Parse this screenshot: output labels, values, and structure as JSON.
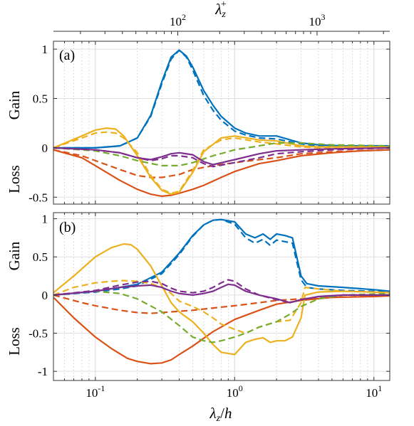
{
  "chart_data": {
    "type": "line",
    "top_axis": {
      "label": "λz+",
      "ticks": [
        {
          "label": "10",
          "exp": "2"
        },
        {
          "label": "10",
          "exp": "3"
        }
      ]
    },
    "bottom_axis": {
      "label": "λz/h",
      "ticks": [
        {
          "label": "10",
          "exp": "-1"
        },
        {
          "label": "10",
          "exp": "0"
        },
        {
          "label": "10",
          "exp": "1"
        }
      ]
    },
    "x_scale": "log",
    "xlim": [
      0.05,
      13
    ],
    "grid": true,
    "panels": [
      {
        "label": "(a)",
        "ylabels": {
          "upper": "Gain",
          "lower": "Loss"
        },
        "ylim": [
          -0.57,
          1.08
        ],
        "yticks": [
          1,
          0.5,
          0,
          -0.5
        ],
        "ytick_labels": [
          "1",
          "0.5",
          "0",
          "-0.5"
        ],
        "series": [
          {
            "color": "#0072BD",
            "dash": "solid",
            "x": [
              0.05,
              0.1,
              0.15,
              0.2,
              0.25,
              0.3,
              0.35,
              0.4,
              0.45,
              0.5,
              0.6,
              0.7,
              0.8,
              1.0,
              1.2,
              1.5,
              2.0,
              3.0,
              4.0,
              6.0,
              10.0,
              13.0
            ],
            "y": [
              0.0,
              0.0,
              0.02,
              0.1,
              0.33,
              0.67,
              0.92,
              0.99,
              0.93,
              0.82,
              0.58,
              0.43,
              0.32,
              0.2,
              0.15,
              0.12,
              0.12,
              0.05,
              0.03,
              0.02,
              0.02,
              0.02
            ]
          },
          {
            "color": "#0072BD",
            "dash": "dashed",
            "x": [
              0.05,
              0.1,
              0.15,
              0.2,
              0.25,
              0.3,
              0.35,
              0.4,
              0.45,
              0.5,
              0.6,
              0.7,
              0.8,
              1.0,
              1.2,
              1.5,
              2.0,
              3.0,
              4.0,
              6.0,
              10.0,
              13.0
            ],
            "y": [
              0.0,
              0.0,
              0.02,
              0.1,
              0.32,
              0.65,
              0.9,
              0.99,
              0.92,
              0.79,
              0.53,
              0.38,
              0.28,
              0.17,
              0.13,
              0.1,
              0.09,
              0.04,
              0.02,
              0.02,
              0.02,
              0.02
            ]
          },
          {
            "color": "#D95319",
            "dash": "solid",
            "x": [
              0.05,
              0.08,
              0.1,
              0.15,
              0.2,
              0.25,
              0.3,
              0.35,
              0.4,
              0.5,
              0.6,
              0.8,
              1.0,
              1.5,
              2.0,
              3.0,
              5.0,
              8.0,
              13.0
            ],
            "y": [
              -0.02,
              -0.1,
              -0.18,
              -0.33,
              -0.42,
              -0.47,
              -0.49,
              -0.48,
              -0.46,
              -0.42,
              -0.38,
              -0.3,
              -0.24,
              -0.16,
              -0.13,
              -0.08,
              -0.05,
              -0.03,
              -0.02
            ]
          },
          {
            "color": "#D95319",
            "dash": "dashed",
            "x": [
              0.05,
              0.08,
              0.1,
              0.15,
              0.2,
              0.25,
              0.3,
              0.4,
              0.5,
              0.7,
              1.0,
              1.5,
              2.0,
              3.0,
              5.0,
              8.0,
              13.0
            ],
            "y": [
              -0.02,
              -0.08,
              -0.13,
              -0.22,
              -0.28,
              -0.3,
              -0.3,
              -0.27,
              -0.22,
              -0.18,
              -0.15,
              -0.12,
              -0.1,
              -0.06,
              -0.04,
              -0.03,
              -0.02
            ]
          },
          {
            "color": "#EDB120",
            "dash": "solid",
            "x": [
              0.05,
              0.08,
              0.1,
              0.12,
              0.14,
              0.16,
              0.2,
              0.25,
              0.3,
              0.35,
              0.4,
              0.5,
              0.6,
              0.8,
              1.0,
              1.5,
              2.0,
              3.0,
              4.0,
              6.0,
              10.0,
              13.0
            ],
            "y": [
              0.0,
              0.12,
              0.18,
              0.2,
              0.19,
              0.12,
              -0.08,
              -0.3,
              -0.43,
              -0.47,
              -0.45,
              -0.25,
              -0.04,
              0.1,
              0.12,
              0.08,
              0.07,
              0.02,
              0.01,
              0.01,
              0.01,
              0.01
            ]
          },
          {
            "color": "#EDB120",
            "dash": "dashed",
            "x": [
              0.05,
              0.08,
              0.1,
              0.12,
              0.14,
              0.16,
              0.2,
              0.25,
              0.3,
              0.35,
              0.4,
              0.5,
              0.6,
              0.8,
              1.0,
              1.5,
              2.0,
              3.0,
              4.0,
              6.0,
              10.0,
              13.0
            ],
            "y": [
              0.0,
              0.1,
              0.15,
              0.16,
              0.15,
              0.1,
              -0.05,
              -0.28,
              -0.42,
              -0.46,
              -0.44,
              -0.23,
              -0.02,
              0.08,
              0.1,
              0.06,
              0.04,
              0.01,
              0.0,
              0.0,
              0.0,
              0.0
            ]
          },
          {
            "color": "#77AC30",
            "dash": "dashed",
            "x": [
              0.05,
              0.1,
              0.15,
              0.2,
              0.3,
              0.4,
              0.5,
              0.7,
              1.0,
              1.5,
              2.0,
              3.0,
              5.0,
              13.0
            ],
            "y": [
              0.0,
              -0.03,
              -0.08,
              -0.13,
              -0.18,
              -0.18,
              -0.15,
              -0.08,
              -0.02,
              0.02,
              0.05,
              0.05,
              0.03,
              0.02
            ]
          },
          {
            "color": "#7E2F8E",
            "dash": "solid",
            "x": [
              0.05,
              0.1,
              0.15,
              0.2,
              0.25,
              0.3,
              0.35,
              0.4,
              0.5,
              0.6,
              0.7,
              1.0,
              1.5,
              2.0,
              3.0,
              5.0,
              13.0
            ],
            "y": [
              0.0,
              -0.02,
              -0.05,
              -0.1,
              -0.12,
              -0.09,
              -0.06,
              -0.05,
              -0.07,
              -0.14,
              -0.17,
              -0.12,
              -0.06,
              -0.03,
              -0.02,
              -0.01,
              0.0
            ]
          },
          {
            "color": "#7E2F8E",
            "dash": "dashed",
            "x": [
              0.05,
              0.1,
              0.15,
              0.2,
              0.25,
              0.3,
              0.35,
              0.4,
              0.5,
              0.6,
              0.7,
              1.0,
              1.5,
              2.0,
              3.0,
              5.0,
              13.0
            ],
            "y": [
              0.0,
              -0.02,
              -0.05,
              -0.1,
              -0.13,
              -0.11,
              -0.08,
              -0.08,
              -0.1,
              -0.16,
              -0.19,
              -0.15,
              -0.1,
              -0.06,
              -0.04,
              -0.02,
              0.0
            ]
          }
        ]
      },
      {
        "label": "(b)",
        "ylabels": {
          "upper": "Gain",
          "lower": "Loss"
        },
        "ylim": [
          -1.12,
          1.08
        ],
        "yticks": [
          1,
          0.5,
          0,
          -0.5,
          -1
        ],
        "ytick_labels": [
          "1",
          "0.5",
          "0",
          "-0.5",
          "-1"
        ],
        "series": [
          {
            "color": "#0072BD",
            "dash": "solid",
            "x": [
              0.05,
              0.1,
              0.15,
              0.2,
              0.3,
              0.4,
              0.5,
              0.6,
              0.7,
              0.8,
              1.0,
              1.2,
              1.4,
              1.6,
              1.8,
              2.0,
              2.3,
              2.6,
              3.0,
              3.3,
              4.0,
              6.0,
              10.0,
              13.0
            ],
            "y": [
              0.0,
              0.05,
              0.1,
              0.14,
              0.3,
              0.55,
              0.78,
              0.92,
              0.98,
              0.99,
              0.96,
              0.8,
              0.75,
              0.8,
              0.73,
              0.8,
              0.78,
              0.75,
              0.25,
              0.15,
              0.12,
              0.1,
              0.07,
              0.05
            ]
          },
          {
            "color": "#0072BD",
            "dash": "dashed",
            "x": [
              0.05,
              0.1,
              0.15,
              0.2,
              0.3,
              0.4,
              0.5,
              0.6,
              0.7,
              0.8,
              1.0,
              1.2,
              1.4,
              1.6,
              1.8,
              2.0,
              2.3,
              2.6,
              3.0,
              3.3,
              4.0,
              6.0,
              10.0,
              13.0
            ],
            "y": [
              0.0,
              0.04,
              0.08,
              0.12,
              0.28,
              0.53,
              0.77,
              0.92,
              0.98,
              0.99,
              0.93,
              0.75,
              0.68,
              0.73,
              0.65,
              0.72,
              0.7,
              0.68,
              0.2,
              0.1,
              0.08,
              0.06,
              0.05,
              0.04
            ]
          },
          {
            "color": "#D95319",
            "dash": "solid",
            "x": [
              0.05,
              0.07,
              0.1,
              0.13,
              0.17,
              0.2,
              0.25,
              0.3,
              0.35,
              0.4,
              0.5,
              0.7,
              1.0,
              1.5,
              2.0,
              3.0,
              5.0,
              10.0,
              13.0
            ],
            "y": [
              -0.03,
              -0.3,
              -0.55,
              -0.7,
              -0.83,
              -0.87,
              -0.9,
              -0.89,
              -0.85,
              -0.78,
              -0.67,
              -0.48,
              -0.32,
              -0.2,
              -0.12,
              -0.07,
              -0.03,
              -0.02,
              -0.01
            ]
          },
          {
            "color": "#D95319",
            "dash": "dashed",
            "x": [
              0.05,
              0.08,
              0.1,
              0.15,
              0.2,
              0.25,
              0.3,
              0.5,
              0.7,
              1.0,
              1.5,
              2.0,
              3.0,
              5.0,
              13.0
            ],
            "y": [
              0.0,
              -0.1,
              -0.14,
              -0.2,
              -0.23,
              -0.24,
              -0.23,
              -0.2,
              -0.17,
              -0.14,
              -0.1,
              -0.07,
              -0.05,
              -0.03,
              -0.01
            ]
          },
          {
            "color": "#EDB120",
            "dash": "solid",
            "x": [
              0.05,
              0.07,
              0.1,
              0.13,
              0.16,
              0.18,
              0.2,
              0.25,
              0.3,
              0.35,
              0.4,
              0.5,
              0.6,
              0.7,
              0.8,
              1.0,
              1.2,
              1.4,
              1.6,
              1.8,
              2.0,
              2.3,
              2.6,
              3.0,
              3.2,
              4.0,
              6.0,
              10.0,
              13.0
            ],
            "y": [
              0.03,
              0.25,
              0.5,
              0.62,
              0.67,
              0.66,
              0.6,
              0.38,
              0.12,
              -0.1,
              -0.22,
              -0.35,
              -0.5,
              -0.65,
              -0.75,
              -0.78,
              -0.62,
              -0.58,
              -0.56,
              -0.62,
              -0.6,
              -0.6,
              -0.55,
              -0.3,
              0.0,
              0.04,
              0.05,
              0.04,
              0.03
            ]
          },
          {
            "color": "#EDB120",
            "dash": "dashed",
            "x": [
              0.05,
              0.07,
              0.1,
              0.13,
              0.16,
              0.2,
              0.25,
              0.3,
              0.35,
              0.4,
              0.5,
              0.6,
              0.7,
              0.8,
              1.0,
              1.2,
              1.5,
              2.0,
              2.5,
              3.0,
              3.2,
              4.0,
              6.0,
              13.0
            ],
            "y": [
              0.0,
              0.1,
              0.16,
              0.18,
              0.19,
              0.18,
              0.15,
              0.1,
              0.02,
              -0.08,
              -0.15,
              -0.22,
              -0.3,
              -0.38,
              -0.45,
              -0.5,
              -0.42,
              -0.35,
              -0.33,
              -0.1,
              0.1,
              0.08,
              0.05,
              0.03
            ]
          },
          {
            "color": "#77AC30",
            "dash": "dashed",
            "x": [
              0.05,
              0.1,
              0.15,
              0.2,
              0.3,
              0.4,
              0.5,
              0.6,
              0.7,
              0.8,
              1.0,
              1.2,
              1.5,
              2.0,
              2.5,
              3.0,
              4.0,
              6.0,
              13.0
            ],
            "y": [
              0.0,
              0.05,
              0.02,
              -0.05,
              -0.22,
              -0.4,
              -0.55,
              -0.6,
              -0.62,
              -0.6,
              -0.55,
              -0.5,
              -0.42,
              -0.35,
              -0.25,
              -0.15,
              -0.05,
              0.0,
              0.02
            ]
          },
          {
            "color": "#7E2F8E",
            "dash": "solid",
            "x": [
              0.05,
              0.1,
              0.15,
              0.2,
              0.25,
              0.3,
              0.35,
              0.4,
              0.5,
              0.6,
              0.7,
              0.8,
              0.9,
              1.0,
              1.2,
              1.5,
              2.0,
              2.5,
              3.0,
              4.0,
              6.0,
              13.0
            ],
            "y": [
              0.0,
              0.05,
              0.1,
              0.12,
              0.13,
              0.1,
              0.05,
              0.02,
              0.0,
              0.02,
              0.05,
              0.1,
              0.14,
              0.13,
              0.05,
              0.0,
              -0.05,
              -0.1,
              -0.06,
              -0.02,
              0.0,
              0.0
            ]
          },
          {
            "color": "#7E2F8E",
            "dash": "dashed",
            "x": [
              0.05,
              0.1,
              0.15,
              0.2,
              0.25,
              0.3,
              0.35,
              0.4,
              0.5,
              0.6,
              0.7,
              0.8,
              0.9,
              1.0,
              1.2,
              1.5,
              2.0,
              2.5,
              3.0,
              4.0,
              6.0,
              13.0
            ],
            "y": [
              0.0,
              0.06,
              0.13,
              0.17,
              0.18,
              0.15,
              0.09,
              0.05,
              0.03,
              0.05,
              0.1,
              0.16,
              0.2,
              0.18,
              0.08,
              0.0,
              -0.06,
              -0.1,
              -0.06,
              -0.02,
              0.0,
              0.0
            ]
          }
        ]
      }
    ]
  }
}
